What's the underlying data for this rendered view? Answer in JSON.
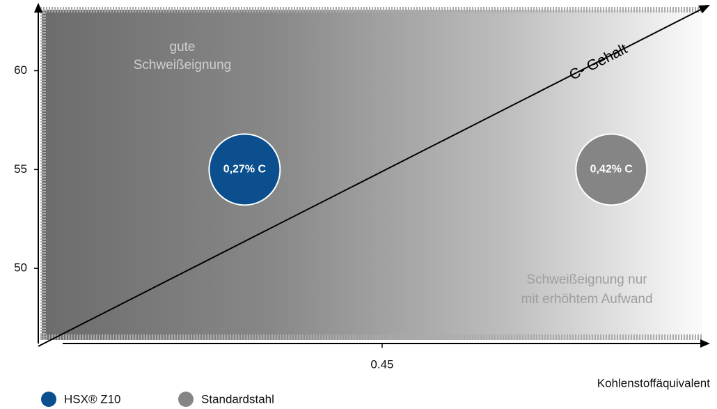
{
  "chart_data": {
    "type": "scatter",
    "xlabel": "Kohlenstoffäquivalent",
    "xlim": [
      0.3,
      0.59
    ],
    "xticks": [
      0.45
    ],
    "ylim": [
      46.2,
      63.4
    ],
    "yticks": [
      50,
      55,
      60
    ],
    "series": [
      {
        "name": "HSX® Z10",
        "color": "#0b4f8f",
        "x": [
          0.39
        ],
        "values": [
          55
        ],
        "value_labels": [
          "0,27% C"
        ]
      },
      {
        "name": "Standardstahl",
        "color": "#858585",
        "x": [
          0.55
        ],
        "values": [
          55
        ],
        "value_labels": [
          "0,42% C"
        ]
      }
    ],
    "annotations": [
      {
        "text": [
          "gute",
          "Schweißeignung"
        ]
      },
      {
        "text": [
          "Schweißeignung nur",
          "mit erhöhtem Aufwand"
        ]
      },
      {
        "text": [
          "C- Gehalt"
        ]
      }
    ]
  }
}
